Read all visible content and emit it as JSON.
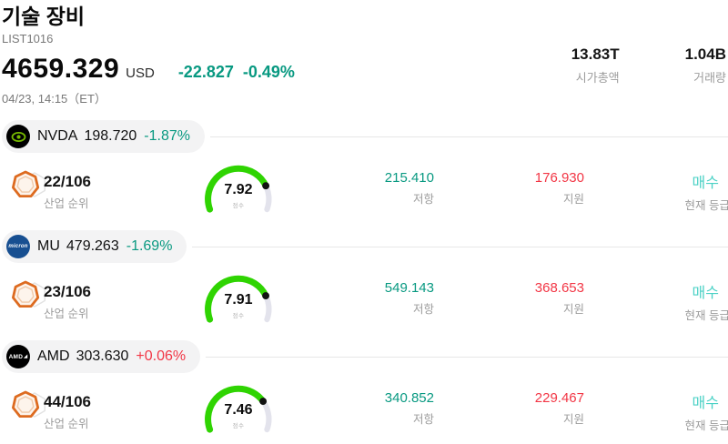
{
  "header": {
    "title": "기술 장비",
    "list_id": "LIST1016",
    "price": "4659.329",
    "currency": "USD",
    "change": "-22.827",
    "change_pct": "-0.49%",
    "datetime": "04/23, 14:15（ET）",
    "stats": [
      {
        "value": "13.83T",
        "label": "시가총액"
      },
      {
        "value": "1.04B",
        "label": "거래량"
      }
    ]
  },
  "labels": {
    "industry_rank": "산업 순위",
    "resistance": "저항",
    "support": "지원",
    "current_rating": "현재 등급",
    "score": "점수"
  },
  "colors": {
    "teal": "#089981",
    "red": "#f23645",
    "cyan": "#4ad1c5",
    "gauge-green": "#2fd402",
    "gauge-track": "#e3e3ec",
    "gauge-dot": "#111111"
  },
  "stocks": [
    {
      "ticker": "NVDA",
      "price": "198.720",
      "change": "-1.87%",
      "rank": "22/106",
      "score": "7.92",
      "score_value": 7.92,
      "score_max": 10,
      "resistance": "215.410",
      "support": "176.930",
      "rating": "매수",
      "logo": "nvidia-logo"
    },
    {
      "ticker": "MU",
      "price": "479.263",
      "change": "-1.69%",
      "rank": "23/106",
      "score": "7.91",
      "score_value": 7.91,
      "score_max": 10,
      "resistance": "549.143",
      "support": "368.653",
      "rating": "매수",
      "logo": "micron-logo"
    },
    {
      "ticker": "AMD",
      "price": "303.630",
      "change": "+0.06%",
      "rank": "44/106",
      "score": "7.46",
      "score_value": 7.46,
      "score_max": 10,
      "resistance": "340.852",
      "support": "229.467",
      "rating": "매수",
      "logo": "amd-logo"
    }
  ]
}
